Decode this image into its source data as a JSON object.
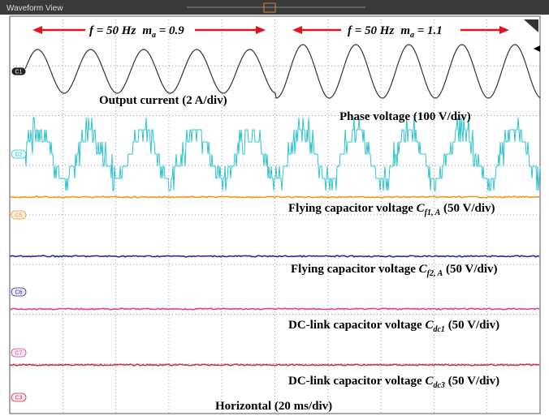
{
  "window": {
    "title": "Waveform View"
  },
  "annotations": {
    "left_condition": {
      "f": "f = 50 Hz",
      "m": "m",
      "sub": "a",
      "rest": " = 0.9"
    },
    "right_condition": {
      "f": "f = 50 Hz",
      "m": "m",
      "sub": "a",
      "rest": " = 1.1"
    },
    "output_current": "Output current (2 A/div)",
    "phase_voltage": "Phase voltage (100 V/div)",
    "flying_cap_1": {
      "text": "Flying capacitor voltage ",
      "var": "C",
      "sub": "f1, A",
      "rest": " (50 V/div)"
    },
    "flying_cap_2": {
      "text": "Flying capacitor voltage ",
      "var": "C",
      "sub": "f2, A",
      "rest": " (50 V/div)"
    },
    "dc_link_1": {
      "text": "DC-link capacitor voltage ",
      "var": "C",
      "sub": "dc1",
      "rest": " (50 V/div)"
    },
    "dc_link_3": {
      "text": "DC-link capacitor voltage ",
      "var": "C",
      "sub": "dc3",
      "rest": " (50 V/div)"
    },
    "horizontal": "Horizontal (20 ms/div)"
  },
  "channels": [
    "C1",
    "C2",
    "C5",
    "C6",
    "C7",
    "C3"
  ]
}
